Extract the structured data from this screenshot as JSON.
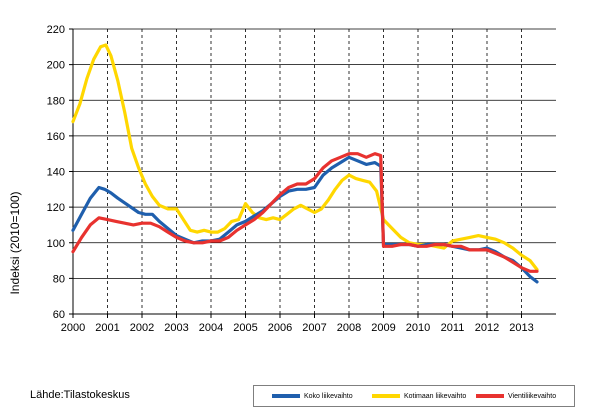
{
  "chart_data": {
    "type": "line",
    "ylabel": "Indeksi (2010=100)",
    "ylim": [
      60,
      220
    ],
    "yticks": [
      60,
      80,
      100,
      120,
      140,
      160,
      180,
      200,
      220
    ],
    "xlim": [
      2000,
      2014
    ],
    "xticks": [
      2000,
      2001,
      2002,
      2003,
      2004,
      2005,
      2006,
      2007,
      2008,
      2009,
      2010,
      2011,
      2012,
      2013
    ],
    "grid": "vertical-dashed-and-horizontal",
    "legend_position": "bottom-right",
    "series": [
      {
        "name": "Koko liikevaihto",
        "color": "#1f5fad",
        "x": [
          2000.0,
          2000.25,
          2000.5,
          2000.75,
          2000.92,
          2001.1,
          2001.3,
          2001.6,
          2001.9,
          2002.1,
          2002.3,
          2002.5,
          2002.75,
          2003.0,
          2003.25,
          2003.5,
          2003.75,
          2004.0,
          2004.25,
          2004.5,
          2004.75,
          2005.0,
          2005.25,
          2005.5,
          2005.75,
          2006.0,
          2006.25,
          2006.5,
          2006.75,
          2007.0,
          2007.25,
          2007.5,
          2007.75,
          2008.0,
          2008.25,
          2008.5,
          2008.75,
          2008.92,
          2009.0,
          2009.25,
          2009.5,
          2009.75,
          2010.0,
          2010.25,
          2010.5,
          2010.75,
          2011.0,
          2011.25,
          2011.5,
          2011.75,
          2012.0,
          2012.25,
          2012.5,
          2012.75,
          2013.0,
          2013.25,
          2013.45
        ],
        "values": [
          107,
          116,
          125,
          131,
          130,
          128,
          125,
          121,
          117,
          116,
          116,
          112,
          108,
          104,
          102,
          100,
          101,
          101,
          102,
          106,
          110,
          112,
          115,
          118,
          122,
          126,
          129,
          130,
          130,
          131,
          138,
          142,
          145,
          148,
          146,
          144,
          145,
          143,
          99,
          99,
          99,
          99,
          98,
          99,
          99,
          99,
          98,
          97,
          96,
          96,
          97,
          95,
          92,
          90,
          86,
          81,
          78
        ]
      },
      {
        "name": "Kotimaan liikevaihto",
        "color": "#ffd700",
        "x": [
          2000.0,
          2000.2,
          2000.4,
          2000.6,
          2000.8,
          2000.95,
          2001.1,
          2001.3,
          2001.5,
          2001.7,
          2001.9,
          2002.1,
          2002.3,
          2002.5,
          2002.75,
          2003.0,
          2003.2,
          2003.4,
          2003.6,
          2003.8,
          2004.0,
          2004.2,
          2004.4,
          2004.6,
          2004.8,
          2005.0,
          2005.2,
          2005.4,
          2005.6,
          2005.8,
          2006.0,
          2006.2,
          2006.4,
          2006.6,
          2006.8,
          2007.0,
          2007.2,
          2007.4,
          2007.6,
          2007.8,
          2008.0,
          2008.2,
          2008.4,
          2008.6,
          2008.8,
          2009.0,
          2009.25,
          2009.5,
          2009.75,
          2010.0,
          2010.25,
          2010.5,
          2010.75,
          2011.0,
          2011.25,
          2011.5,
          2011.75,
          2012.0,
          2012.25,
          2012.5,
          2012.75,
          2013.0,
          2013.25,
          2013.45
        ],
        "values": [
          168,
          178,
          192,
          203,
          210,
          211,
          205,
          191,
          173,
          153,
          142,
          133,
          126,
          121,
          119,
          119,
          113,
          107,
          106,
          107,
          106,
          106,
          108,
          112,
          113,
          122,
          117,
          114,
          113,
          114,
          113,
          116,
          119,
          121,
          119,
          117,
          119,
          124,
          130,
          135,
          138,
          136,
          135,
          134,
          129,
          113,
          108,
          103,
          100,
          99,
          99,
          98,
          97,
          101,
          102,
          103,
          104,
          103,
          102,
          100,
          97,
          93,
          90,
          85
        ]
      },
      {
        "name": "Vientiliikevaihto",
        "color": "#e8322f",
        "x": [
          2000.0,
          2000.25,
          2000.5,
          2000.75,
          2001.0,
          2001.25,
          2001.5,
          2001.75,
          2002.0,
          2002.25,
          2002.5,
          2002.75,
          2003.0,
          2003.25,
          2003.5,
          2003.75,
          2004.0,
          2004.25,
          2004.5,
          2004.75,
          2005.0,
          2005.25,
          2005.5,
          2005.75,
          2006.0,
          2006.25,
          2006.5,
          2006.75,
          2007.0,
          2007.25,
          2007.5,
          2007.75,
          2008.0,
          2008.25,
          2008.5,
          2008.75,
          2008.92,
          2009.0,
          2009.25,
          2009.5,
          2009.75,
          2010.0,
          2010.25,
          2010.5,
          2010.75,
          2011.0,
          2011.25,
          2011.5,
          2011.75,
          2012.0,
          2012.25,
          2012.5,
          2012.75,
          2013.0,
          2013.25,
          2013.45
        ],
        "values": [
          95,
          103,
          110,
          114,
          113,
          112,
          111,
          110,
          111,
          111,
          109,
          106,
          103,
          101,
          100,
          100,
          101,
          101,
          103,
          107,
          110,
          113,
          117,
          122,
          127,
          131,
          133,
          133,
          136,
          142,
          146,
          148,
          150,
          150,
          148,
          150,
          149,
          98,
          98,
          99,
          99,
          98,
          98,
          99,
          99,
          98,
          98,
          96,
          96,
          96,
          94,
          92,
          89,
          86,
          84,
          84
        ]
      }
    ]
  },
  "source_text": "Lähde:Tilastokeskus"
}
